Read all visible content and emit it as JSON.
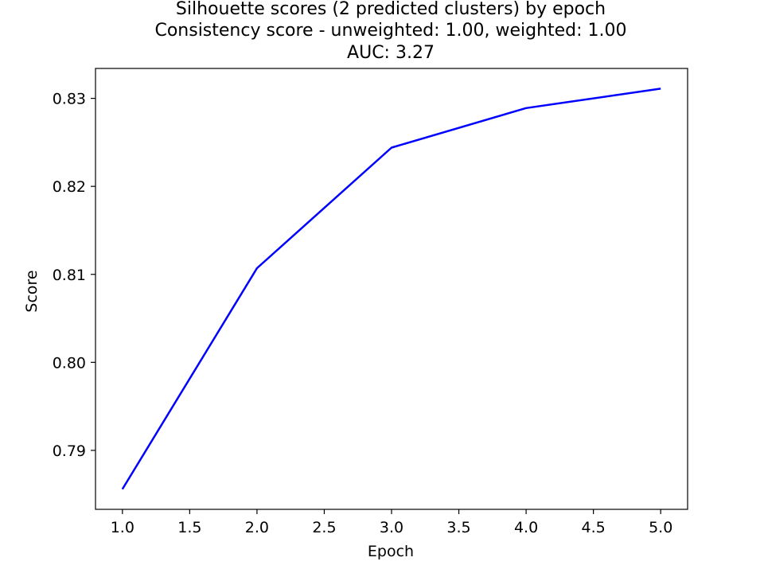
{
  "chart_data": {
    "type": "line",
    "title_lines": [
      "Silhouette scores (2 predicted clusters) by epoch",
      "Consistency score - unweighted: 1.00, weighted: 1.00",
      "AUC: 3.27"
    ],
    "xlabel": "Epoch",
    "ylabel": "Score",
    "x": [
      1,
      2,
      3,
      4,
      5
    ],
    "series": [
      {
        "values": [
          0.7856,
          0.8107,
          0.8244,
          0.8289,
          0.8311
        ],
        "color": "#0000ff"
      }
    ],
    "xlim": [
      0.8,
      5.2
    ],
    "ylim": [
      0.7833,
      0.8334
    ],
    "xticks": [
      1.0,
      1.5,
      2.0,
      2.5,
      3.0,
      3.5,
      4.0,
      4.5,
      5.0
    ],
    "xtick_labels": [
      "1.0",
      "1.5",
      "2.0",
      "2.5",
      "3.0",
      "3.5",
      "4.0",
      "4.5",
      "5.0"
    ],
    "yticks": [
      0.79,
      0.8,
      0.81,
      0.82,
      0.83
    ],
    "ytick_labels": [
      "0.79",
      "0.80",
      "0.81",
      "0.82",
      "0.83"
    ],
    "grid": false,
    "legend": "none"
  }
}
